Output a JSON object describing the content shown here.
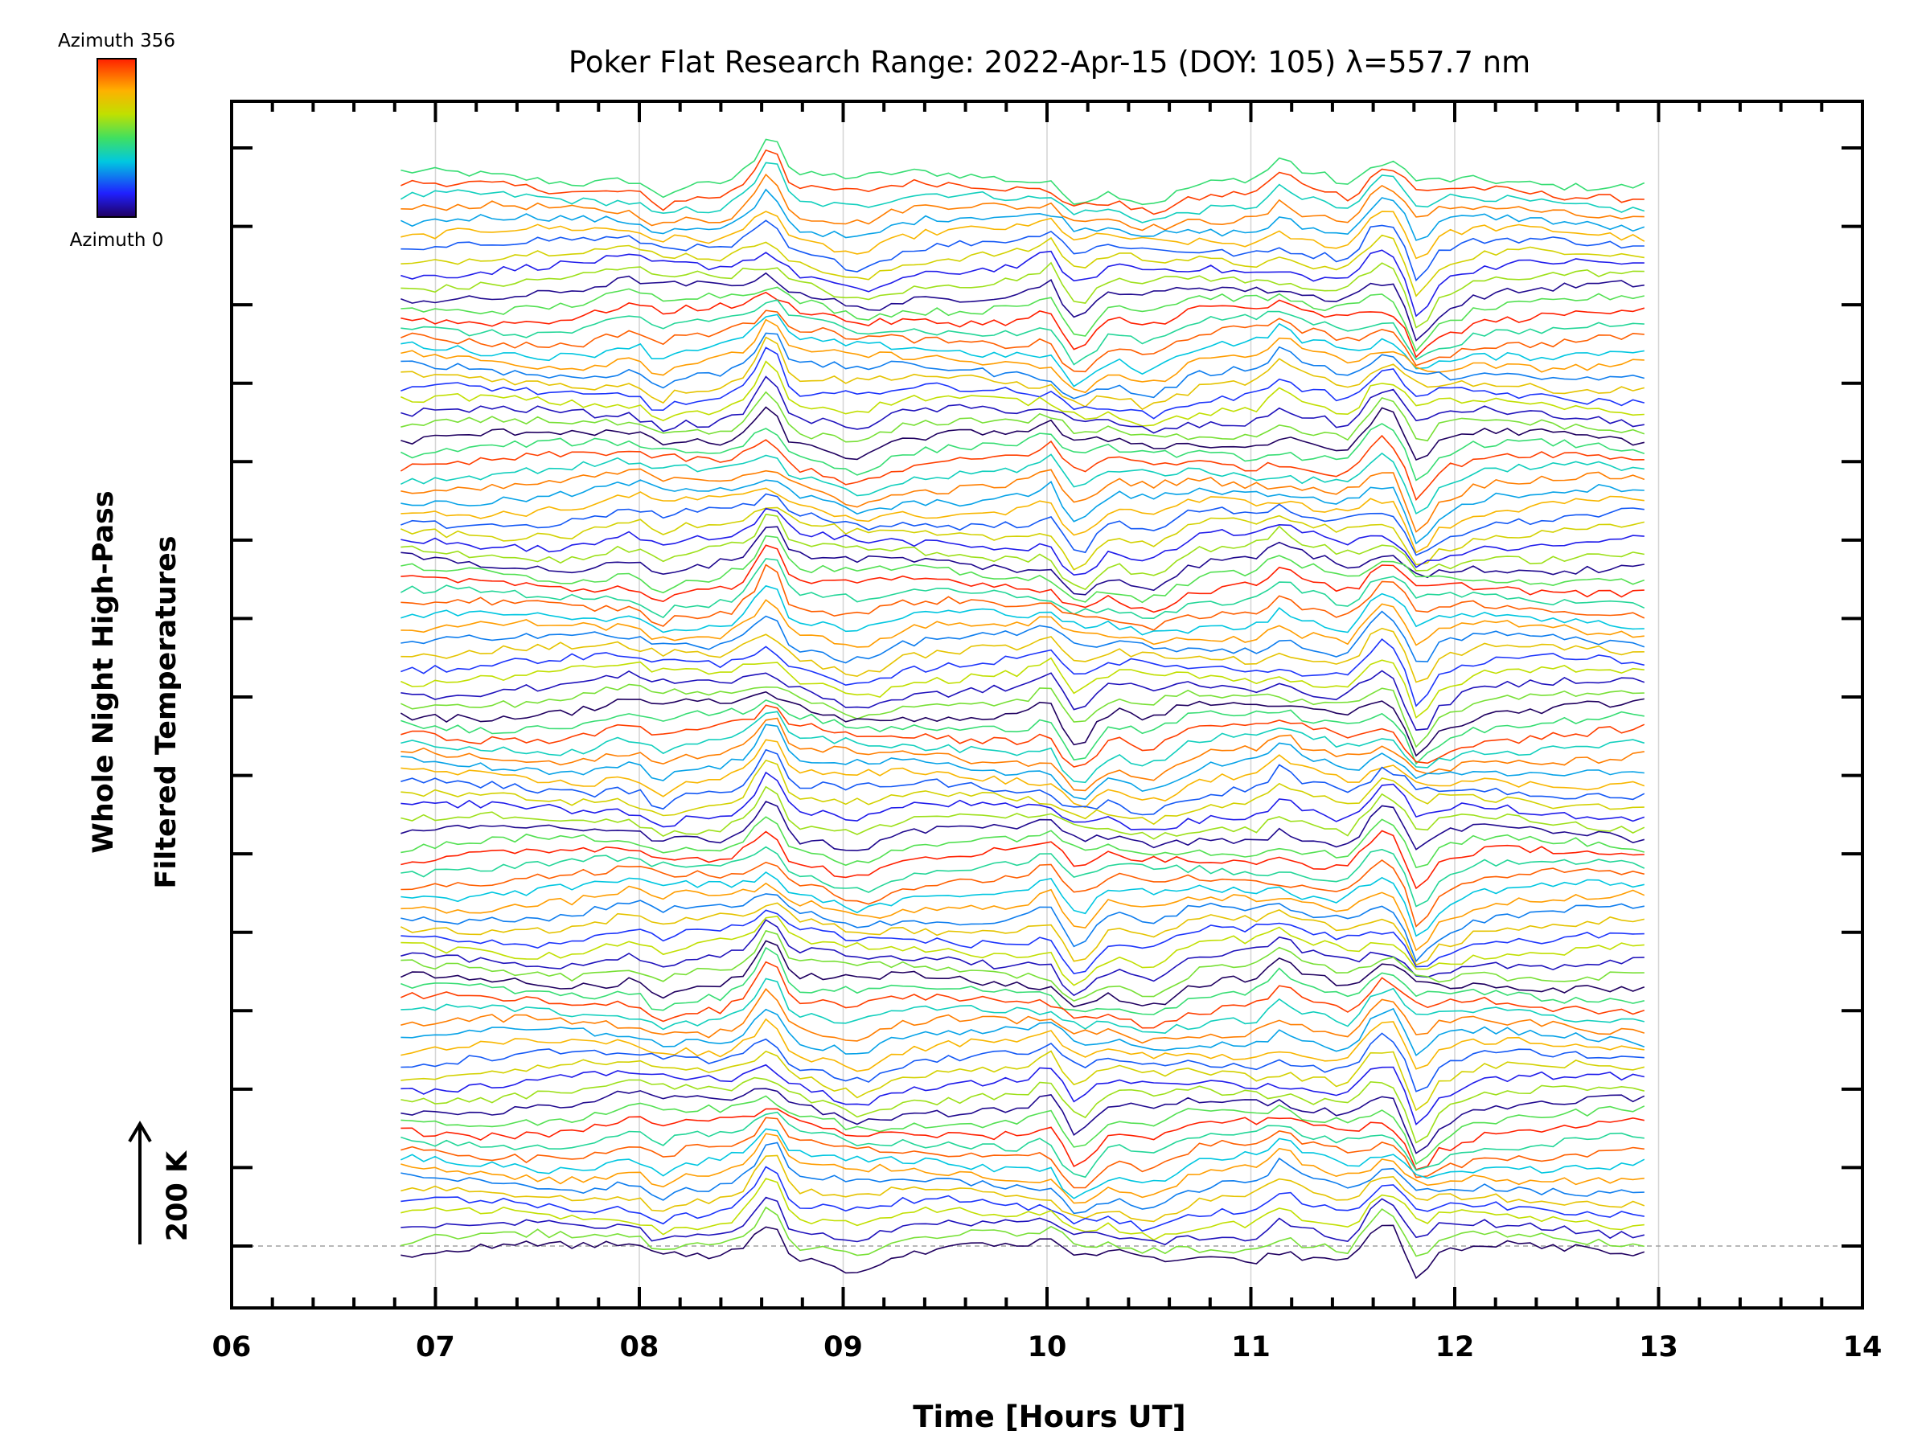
{
  "chart_data": {
    "type": "line",
    "title": "Poker Flat Research Range: 2022-Apr-15 (DOY: 105) λ=557.7 nm",
    "xlabel": "Time [Hours UT]",
    "ylabel_line1": "Whole Night High-Pass",
    "ylabel_line2": "Filtered Temperatures",
    "scale_label": "200 K",
    "xlim": [
      6,
      14
    ],
    "x_ticks": [
      "06",
      "07",
      "08",
      "09",
      "10",
      "11",
      "12",
      "13",
      "14"
    ],
    "x_start": 6.83,
    "x_end": 12.93,
    "n_series": 96,
    "n_y_ticks": 15,
    "grid": true,
    "colorbar": {
      "top_label": "Azimuth 356",
      "bottom_label": "Azimuth 0",
      "colormap": "rainbow"
    },
    "series_description": "Offset stacked high-pass filtered temperature traces, colored by azimuth (0 to 356 deg)",
    "events": [
      {
        "x": 8.65,
        "amp": 45
      },
      {
        "x": 8.58,
        "amp": 25
      },
      {
        "x": 9.08,
        "amp": -18
      },
      {
        "x": 10.02,
        "amp": 22
      },
      {
        "x": 10.15,
        "amp": -45
      },
      {
        "x": 10.5,
        "amp": -25
      },
      {
        "x": 11.15,
        "amp": 22
      },
      {
        "x": 11.5,
        "amp": -30
      },
      {
        "x": 11.62,
        "amp": 40
      },
      {
        "x": 11.82,
        "amp": -55
      },
      {
        "x": 11.95,
        "amp": -15
      },
      {
        "x": 7.95,
        "amp": 12
      },
      {
        "x": 8.1,
        "amp": -15
      }
    ]
  }
}
